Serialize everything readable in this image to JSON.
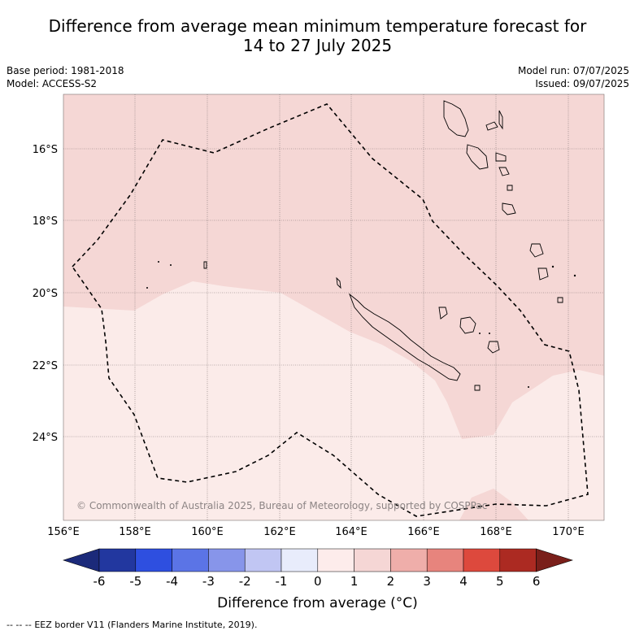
{
  "title_line1": "Difference from average mean minimum temperature forecast for",
  "title_line2": "14 to 27 July 2025",
  "base_period": "Base period: 1981-2018",
  "model": "Model: ACCESS-S2",
  "model_run": "Model run: 07/07/2025",
  "issued": "Issued: 09/07/2025",
  "copyright": "© Commonwealth of Australia 2025, Bureau of Meteorology, supported by COSPPac",
  "lon_labels": [
    "156°E",
    "158°E",
    "160°E",
    "162°E",
    "164°E",
    "166°E",
    "168°E",
    "170°E"
  ],
  "lat_labels": [
    "16°S",
    "18°S",
    "20°S",
    "22°S",
    "24°S"
  ],
  "colorbar": {
    "ticks": [
      "-6",
      "-5",
      "-4",
      "-3",
      "-2",
      "-1",
      "0",
      "1",
      "2",
      "3",
      "4",
      "5",
      "6"
    ],
    "colors": [
      "#22379f",
      "#2e4fe0",
      "#5b74e6",
      "#8795ea",
      "#c1c6f3",
      "#e8ecfb",
      "#fdeceb",
      "#f5d6d5",
      "#efaeaa",
      "#e7847d",
      "#dd493d",
      "#ac2a22"
    ],
    "under_color": "#1b2a7a",
    "over_color": "#7a1f1a",
    "label": "Difference from average (°C)"
  },
  "map_colors": {
    "zone_0_1": "#fbebe9",
    "zone_1_2": "#f5d7d5",
    "grid": "#7a6f6f",
    "eez": "#000000"
  },
  "legend_note": "EEZ border V11 (Flanders Marine Institute, 2019).",
  "legend_note_prefix": "--  --  --"
}
